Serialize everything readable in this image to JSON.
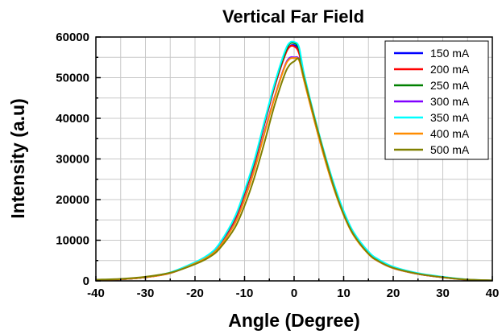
{
  "chart_data": {
    "type": "line",
    "title": "Vertical Far Field",
    "xlabel": "Angle (Degree)",
    "ylabel": "Intensity (a.u)",
    "xlim": [
      -40,
      40
    ],
    "ylim": [
      0,
      60000
    ],
    "xticks": [
      -40,
      -30,
      -20,
      -10,
      0,
      10,
      20,
      30,
      40
    ],
    "yticks": [
      0,
      10000,
      20000,
      30000,
      40000,
      50000,
      60000
    ],
    "grid": true,
    "legend_position": "top-right",
    "x": [
      -40,
      -35,
      -30,
      -25,
      -20,
      -17,
      -15,
      -12,
      -10,
      -8,
      -6,
      -4,
      -2,
      -1,
      0,
      1,
      2,
      4,
      6,
      8,
      10,
      12,
      15,
      17,
      20,
      25,
      30,
      35,
      40
    ],
    "series": [
      {
        "name": "150 mA",
        "color": "#0000ff",
        "values": [
          200,
          400,
          900,
          2000,
          4500,
          6500,
          9000,
          15000,
          21500,
          29000,
          38500,
          47500,
          55000,
          57500,
          58000,
          56500,
          50000,
          40000,
          31000,
          23000,
          16500,
          11500,
          6800,
          4900,
          3200,
          1700,
          900,
          300,
          100
        ]
      },
      {
        "name": "200 mA",
        "color": "#ff0000",
        "values": [
          200,
          400,
          900,
          2000,
          4500,
          6500,
          9000,
          15000,
          21500,
          29000,
          38500,
          47500,
          55000,
          57500,
          57700,
          56000,
          50000,
          40000,
          31000,
          23000,
          16500,
          11500,
          6800,
          4900,
          3200,
          1700,
          900,
          300,
          100
        ]
      },
      {
        "name": "250 mA",
        "color": "#008000",
        "values": [
          200,
          400,
          900,
          2000,
          4500,
          6600,
          9200,
          15500,
          22000,
          29500,
          39000,
          48000,
          55500,
          58200,
          58500,
          57000,
          50500,
          40500,
          31500,
          23500,
          16800,
          11700,
          6900,
          5000,
          3300,
          1800,
          950,
          300,
          100
        ]
      },
      {
        "name": "300 mA",
        "color": "#8000ff",
        "values": [
          200,
          400,
          900,
          1900,
          4300,
          6200,
          8600,
          14200,
          20200,
          27500,
          36500,
          45000,
          52500,
          54800,
          55000,
          54500,
          49500,
          40000,
          31000,
          23000,
          16300,
          11300,
          6700,
          4800,
          3100,
          1700,
          850,
          300,
          100
        ]
      },
      {
        "name": "350 mA",
        "color": "#00ffff",
        "values": [
          250,
          450,
          950,
          2100,
          4600,
          6700,
          9300,
          15600,
          22200,
          29800,
          39200,
          48300,
          56000,
          58500,
          58800,
          57500,
          51000,
          41000,
          32000,
          24000,
          17200,
          12000,
          7200,
          5300,
          3500,
          1900,
          1000,
          350,
          120
        ]
      },
      {
        "name": "400 mA",
        "color": "#ff8c00",
        "values": [
          200,
          400,
          900,
          1900,
          4300,
          6200,
          8500,
          14000,
          20000,
          27300,
          36200,
          44800,
          52300,
          54500,
          54800,
          54300,
          49300,
          39800,
          30800,
          22800,
          16200,
          11200,
          6600,
          4800,
          3100,
          1700,
          850,
          300,
          100
        ]
      },
      {
        "name": "500 mA",
        "color": "#808000",
        "values": [
          300,
          500,
          1000,
          2000,
          4100,
          5900,
          8000,
          13000,
          18500,
          25500,
          34000,
          43000,
          50500,
          53000,
          54000,
          54500,
          50000,
          40500,
          31500,
          23200,
          16400,
          11400,
          6700,
          4900,
          3200,
          1750,
          900,
          320,
          110
        ]
      }
    ]
  }
}
